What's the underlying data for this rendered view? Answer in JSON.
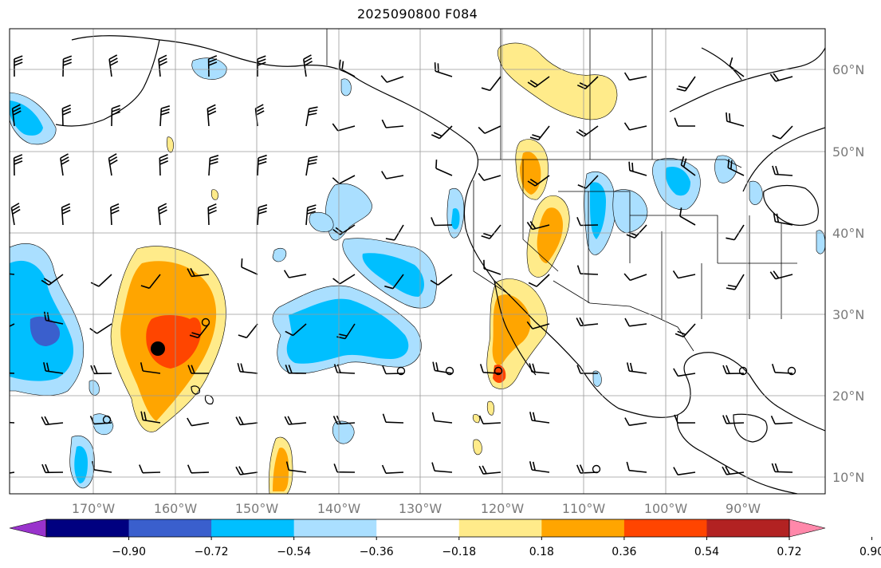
{
  "title": "2025090800 F084",
  "map": {
    "lon_labels": [
      "170°W",
      "160°W",
      "150°W",
      "140°W",
      "130°W",
      "120°W",
      "110°W",
      "100°W",
      "90°W"
    ],
    "lat_labels": [
      "60°N",
      "50°N",
      "40°N",
      "30°N",
      "20°N",
      "10°N"
    ],
    "grid": true
  },
  "colorbar": {
    "colors": [
      "#9933cc",
      "#000080",
      "#3a5fcd",
      "#00bfff",
      "#aadfff",
      "#ffffff",
      "#ffeb8a",
      "#ffa500",
      "#ff4500",
      "#b22222",
      "#ff88aa"
    ],
    "tick_labels": [
      "−0.90",
      "−0.72",
      "−0.54",
      "−0.36",
      "−0.18",
      "0.18",
      "0.36",
      "0.54",
      "0.72",
      "0.90"
    ],
    "extend": "both"
  },
  "markers": {
    "filled_dot": "large black dot",
    "open_circles": 8
  }
}
